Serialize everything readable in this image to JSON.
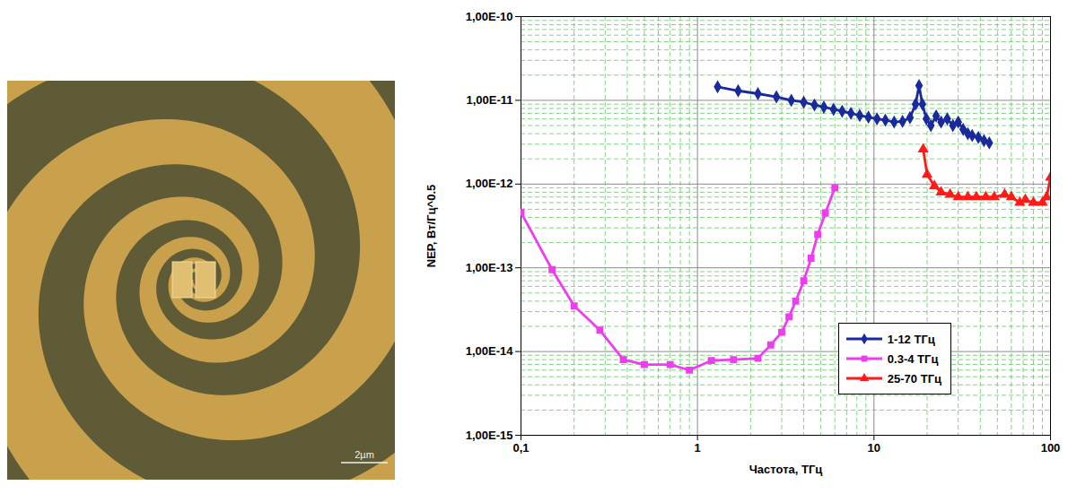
{
  "chart_data": {
    "type": "line",
    "x_label": "Частота, ТГц",
    "y_label": "NEP, Вт/Гц^0.5",
    "log": true,
    "grid": true,
    "legend": "lower right",
    "xlim": [
      0.1,
      100
    ],
    "ylim": [
      1e-15,
      1e-10
    ],
    "xticks": [
      {
        "value": 0.1,
        "label": "0,1"
      },
      1,
      10,
      100
    ],
    "yticks": [
      {
        "value": 1e-15,
        "label": "1,00E-15"
      },
      {
        "value": 1e-14,
        "label": "1,00E-14"
      },
      {
        "value": 1e-13,
        "label": "1,00E-13"
      },
      {
        "value": 1e-12,
        "label": "1,00E-12"
      },
      {
        "value": 1e-11,
        "label": "1,00E-11"
      },
      {
        "value": 1e-10,
        "label": "1,00E-10"
      }
    ],
    "series": [
      {
        "name": "1-12 ТГц",
        "color": "#1a2a9c",
        "marker": "diamond",
        "x": [
          1.3,
          1.7,
          2.2,
          2.8,
          3.4,
          4,
          4.6,
          5.2,
          5.9,
          6.6,
          7.4,
          8.3,
          9.3,
          10.4,
          11.6,
          13,
          14.5,
          16,
          17.2,
          18,
          18.8,
          19.8,
          21,
          22.5,
          24,
          26,
          28,
          30,
          32,
          34,
          36,
          39,
          42,
          45
        ],
        "values": [
          1.45e-11,
          1.3e-11,
          1.2e-11,
          1.1e-11,
          1e-11,
          9.5e-12,
          8.8e-12,
          8.3e-12,
          7.8e-12,
          7.4e-12,
          7e-12,
          6.6e-12,
          6.3e-12,
          6e-12,
          5.8e-12,
          5.5e-12,
          5.6e-12,
          6.2e-12,
          9e-12,
          1.5e-11,
          9e-12,
          6e-12,
          5e-12,
          6.5e-12,
          5.5e-12,
          6e-12,
          5e-12,
          5.5e-12,
          4.5e-12,
          4e-12,
          3.8e-12,
          3.6e-12,
          3.3e-12,
          3.1e-12
        ]
      },
      {
        "name": "0.3-4 ТГц",
        "color": "#f03cf0",
        "marker": "square",
        "x": [
          0.1,
          0.15,
          0.2,
          0.28,
          0.38,
          0.5,
          0.7,
          0.9,
          1.2,
          1.6,
          2.2,
          2.6,
          3,
          3.3,
          3.6,
          4,
          4.4,
          4.8,
          5.3,
          6
        ],
        "values": [
          4.6e-13,
          9.5e-14,
          3.5e-14,
          1.8e-14,
          8e-15,
          7e-15,
          7e-15,
          6e-15,
          7.8e-15,
          8e-15,
          8.3e-15,
          1.2e-14,
          1.7e-14,
          2.6e-14,
          4e-14,
          7e-14,
          1.3e-13,
          2.5e-13,
          4.5e-13,
          9e-13
        ]
      },
      {
        "name": "25-70 ТГц",
        "color": "#ff1a1a",
        "marker": "triangle",
        "x": [
          19,
          20,
          22,
          24,
          27,
          30,
          34,
          38,
          43,
          48,
          55,
          60,
          67,
          72,
          80,
          90,
          95,
          100
        ],
        "values": [
          2.6e-12,
          1.3e-12,
          9.5e-13,
          8e-13,
          7.5e-13,
          7e-13,
          7e-13,
          7e-13,
          7e-13,
          7e-13,
          7.5e-13,
          7e-13,
          6e-13,
          6.5e-13,
          6e-13,
          6e-13,
          7e-13,
          1.2e-12
        ]
      }
    ]
  },
  "image": {
    "scale_bar": "2µm"
  }
}
